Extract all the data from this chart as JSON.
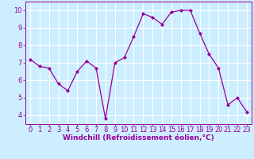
{
  "x": [
    0,
    1,
    2,
    3,
    4,
    5,
    6,
    7,
    8,
    9,
    10,
    11,
    12,
    13,
    14,
    15,
    16,
    17,
    18,
    19,
    20,
    21,
    22,
    23
  ],
  "y": [
    7.2,
    6.8,
    6.7,
    5.8,
    5.4,
    6.5,
    7.1,
    6.7,
    3.8,
    7.0,
    7.3,
    8.5,
    9.8,
    9.6,
    9.2,
    9.9,
    10.0,
    10.0,
    8.7,
    7.5,
    6.7,
    4.6,
    5.0,
    4.2
  ],
  "line_color": "#990099",
  "marker": "D",
  "marker_size": 2,
  "bg_color": "#cceeff",
  "grid_color": "#ffffff",
  "xlabel": "Windchill (Refroidissement éolien,°C)",
  "xlabel_color": "#990099",
  "tick_color": "#990099",
  "label_fontsize": 6.0,
  "xlabel_fontsize": 6.5,
  "ylim": [
    3.5,
    10.5
  ],
  "xlim": [
    -0.5,
    23.5
  ],
  "yticks": [
    4,
    5,
    6,
    7,
    8,
    9,
    10
  ],
  "xticks": [
    0,
    1,
    2,
    3,
    4,
    5,
    6,
    7,
    8,
    9,
    10,
    11,
    12,
    13,
    14,
    15,
    16,
    17,
    18,
    19,
    20,
    21,
    22,
    23
  ]
}
